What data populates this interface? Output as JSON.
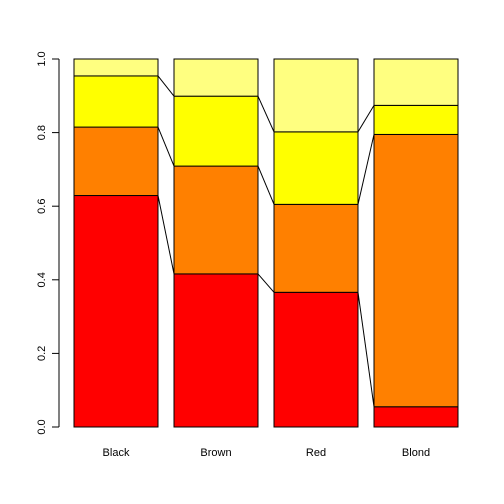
{
  "chart_data": {
    "type": "bar",
    "stacked": true,
    "normalized": true,
    "title": "",
    "xlabel": "",
    "ylabel": "",
    "ylim": [
      0,
      1
    ],
    "y_ticks": [
      "0.0",
      "0.2",
      "0.4",
      "0.6",
      "0.8",
      "1.0"
    ],
    "y_tick_values": [
      0.0,
      0.2,
      0.4,
      0.6,
      0.8,
      1.0
    ],
    "categories": [
      "Black",
      "Brown",
      "Red",
      "Blond"
    ],
    "series": [
      {
        "color": "#FF0000",
        "values": [
          0.629,
          0.416,
          0.366,
          0.055
        ]
      },
      {
        "color": "#FF8000",
        "values": [
          0.186,
          0.293,
          0.239,
          0.74
        ]
      },
      {
        "color": "#FFFF00",
        "values": [
          0.139,
          0.19,
          0.197,
          0.079
        ]
      },
      {
        "color": "#FFFF80",
        "values": [
          0.046,
          0.101,
          0.198,
          0.126
        ]
      }
    ],
    "grid": false,
    "legend": "none",
    "connect_segments": true
  }
}
